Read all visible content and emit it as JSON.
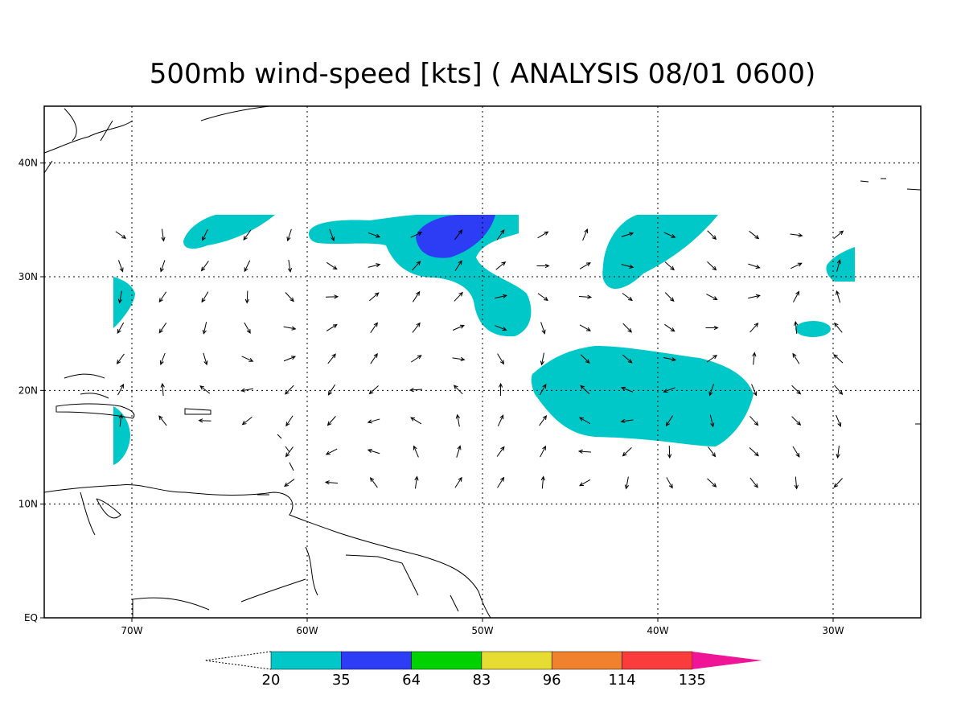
{
  "map": {
    "title": "500mb wind-speed [kts] ( ANALYSIS 08/01 0600)",
    "xlim": [
      -75,
      -25
    ],
    "ylim": [
      0,
      45
    ],
    "xticks": [
      {
        "value": -70,
        "label": "70W"
      },
      {
        "value": -60,
        "label": "60W"
      },
      {
        "value": -50,
        "label": "50W"
      },
      {
        "value": -40,
        "label": "40W"
      },
      {
        "value": -30,
        "label": "30W"
      }
    ],
    "yticks": [
      {
        "value": 40,
        "label": "40N"
      },
      {
        "value": 30,
        "label": "30N"
      },
      {
        "value": 20,
        "label": "20N"
      },
      {
        "value": 10,
        "label": "10N"
      },
      {
        "value": 0,
        "label": "EQ"
      }
    ],
    "grid": true
  },
  "colorbar": {
    "levels": [
      20,
      35,
      64,
      83,
      96,
      114,
      135
    ],
    "colors": [
      "#00c8c8",
      "#2d3cf5",
      "#00d200",
      "#e6dc32",
      "#f0822d",
      "#fa3c3c",
      "#f01496"
    ]
  }
}
